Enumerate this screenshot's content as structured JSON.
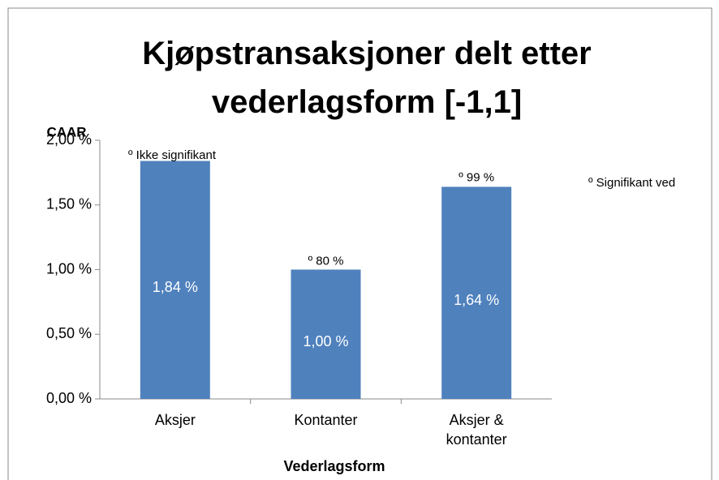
{
  "chart_data": {
    "type": "bar",
    "title": "Kjøpstransaksjoner delt etter vederlagsform [-1,1]",
    "y_label": "CAAR",
    "x_label": "Vederlagsform",
    "categories": [
      "Aksjer",
      "Kontanter",
      "Aksjer & kontanter"
    ],
    "values": [
      1.84,
      1.0,
      1.64
    ],
    "value_labels": [
      "1,84 %",
      "1,00 %",
      "1,64 %"
    ],
    "color": "#4f81bd",
    "ylim": [
      0,
      2
    ],
    "yticks": [
      {
        "value": 0,
        "label": "0,00 %"
      },
      {
        "value": 0.5,
        "label": "0,50 %"
      },
      {
        "value": 1,
        "label": "1,00 %"
      },
      {
        "value": 1.5,
        "label": "1,50 %"
      },
      {
        "value": 2,
        "label": "2,00 %"
      }
    ],
    "grid": false,
    "annotations": [
      "º Ikke signifikant",
      "º 80 %",
      "º 99 %"
    ],
    "note": "º Signifikant ved"
  }
}
